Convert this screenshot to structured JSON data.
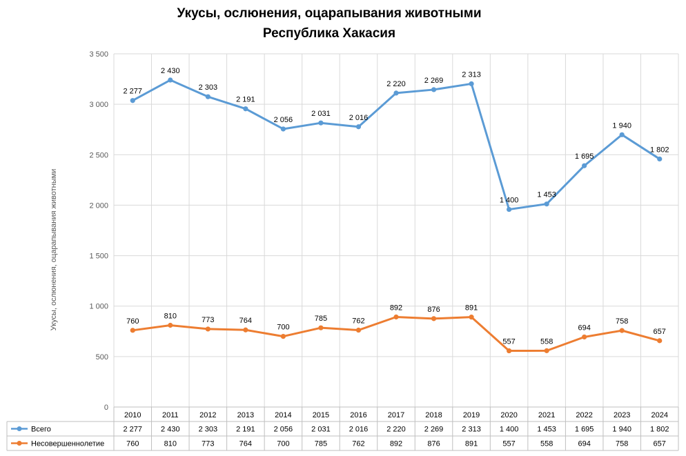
{
  "chart_data": {
    "type": "line",
    "title": [
      "Укусы, ослюнения, оцарапывания животными",
      "Республика Хакасия"
    ],
    "ylabel": "Укусы, ослюнения, оцарапывания животными",
    "xlabel": "",
    "ylim": [
      0,
      3500
    ],
    "ytick_step": 500,
    "ytick_labels": [
      "0",
      "500",
      "1 000",
      "1 500",
      "2 000",
      "2 500",
      "3 000",
      "3 500"
    ],
    "grid": true,
    "legend": "in-table-left",
    "categories": [
      "2010",
      "2011",
      "2012",
      "2013",
      "2014",
      "2015",
      "2016",
      "2017",
      "2018",
      "2019",
      "2020",
      "2021",
      "2022",
      "2023",
      "2024"
    ],
    "series": [
      {
        "name": "Всего",
        "color": "#5b9bd5",
        "values": [
          3037,
          3240,
          3075,
          2955,
          2755,
          2815,
          2777,
          3111,
          3145,
          3203,
          1958,
          2012,
          2391,
          2698,
          2458
        ],
        "labels": [
          "2 277",
          "2 430",
          "2 303",
          "2 191",
          "2 056",
          "2 031",
          "2 016",
          "2 220",
          "2 269",
          "2 313",
          "1 400",
          "1 453",
          "1 695",
          "1 940",
          "1 802"
        ]
      },
      {
        "name": "Несовершеннолетие",
        "color": "#ed7d31",
        "values": [
          760,
          810,
          773,
          764,
          700,
          785,
          762,
          892,
          876,
          891,
          557,
          558,
          694,
          758,
          657
        ],
        "labels": [
          "760",
          "810",
          "773",
          "764",
          "700",
          "785",
          "762",
          "892",
          "876",
          "891",
          "557",
          "558",
          "694",
          "758",
          "657"
        ]
      }
    ]
  }
}
